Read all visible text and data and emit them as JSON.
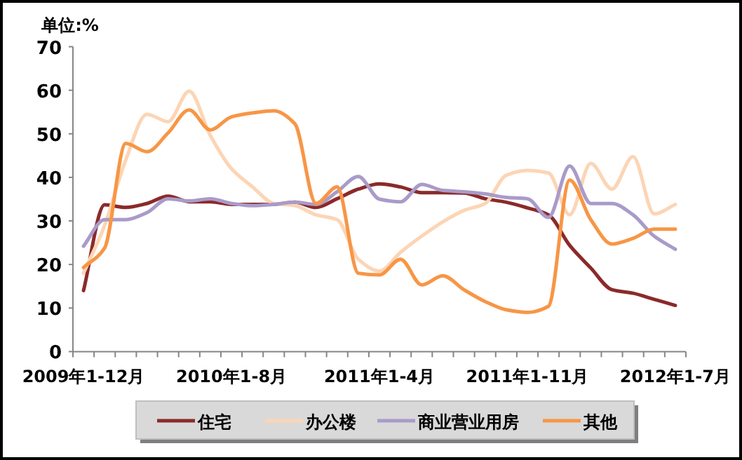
{
  "chart_data": {
    "type": "line",
    "ylabel": "单位:%",
    "categories": [
      "2009年1-12月",
      null,
      null,
      null,
      null,
      null,
      null,
      "2010年1-8月",
      null,
      null,
      null,
      null,
      null,
      null,
      "2011年1-4月",
      null,
      null,
      null,
      null,
      null,
      null,
      "2011年1-11月",
      null,
      null,
      null,
      null,
      null,
      null,
      "2012年1-7月"
    ],
    "series": [
      {
        "name": "住宅",
        "color": "#8b2a2a",
        "values": [
          14,
          33.7,
          33.1,
          34,
          35.7,
          34.4,
          34.4,
          33.8,
          33.8,
          33.8,
          34.3,
          33.1,
          35.1,
          37.3,
          38.5,
          37.8,
          36.5,
          36.5,
          36.4,
          35.1,
          34.3,
          33,
          31.4,
          24.4,
          19.2,
          14.2,
          13.4,
          12,
          10.6
        ]
      },
      {
        "name": "办公楼",
        "color": "#fcd5b5",
        "values": [
          18,
          29,
          44,
          54.5,
          52.8,
          59.8,
          49.6,
          42,
          37.8,
          34,
          33.5,
          31.4,
          30.3,
          21.2,
          18.5,
          22.8,
          26.5,
          29.8,
          32.4,
          34,
          40.5,
          41.6,
          41,
          31.4,
          43.2,
          37.3,
          44.8,
          31.6,
          33.8
        ]
      },
      {
        "name": "商业营业用房",
        "color": "#a99bc9",
        "values": [
          24.2,
          30.3,
          30.3,
          31.9,
          35.1,
          34.6,
          35.1,
          34,
          33.5,
          33.8,
          34.3,
          33.8,
          36.7,
          40.2,
          35,
          34.4,
          38.4,
          37,
          36.7,
          36.2,
          35.4,
          35.1,
          30.8,
          42.6,
          34,
          34,
          31.4,
          26.5,
          23.5
        ]
      },
      {
        "name": "其他",
        "color": "#f79646",
        "values": [
          19.3,
          23.8,
          47.8,
          45.9,
          50.2,
          55.5,
          50.9,
          53.9,
          54.8,
          55.3,
          52.3,
          34,
          37.8,
          18,
          17.6,
          21.2,
          15.3,
          17.4,
          14.2,
          11.5,
          9.6,
          9,
          10.4,
          39.4,
          30.3,
          24.7,
          26,
          28.1,
          28.1
        ]
      }
    ],
    "ylim": [
      0,
      70
    ],
    "yticks": [
      0,
      10,
      20,
      30,
      40,
      50,
      60,
      70
    ],
    "legend": "bottom"
  }
}
